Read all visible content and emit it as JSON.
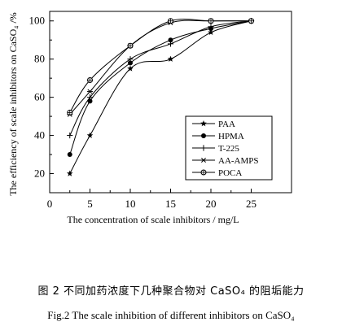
{
  "chart_data": {
    "type": "line",
    "xlabel": "The concentration of scale inhibitors / mg/L",
    "ylabel": "The efficiency of scale inhibitors on CaSO₄ /%",
    "xlim": [
      0,
      30
    ],
    "ylim": [
      10,
      105
    ],
    "xticks": [
      0,
      5,
      10,
      15,
      20,
      25
    ],
    "yticks": [
      20,
      40,
      60,
      80,
      100
    ],
    "grid": false,
    "legend_position": "center-right",
    "x": [
      2.5,
      5,
      10,
      15,
      20,
      25
    ],
    "series": [
      {
        "name": "PAA",
        "marker": "star",
        "values": [
          20,
          40,
          75,
          80,
          94,
          100
        ]
      },
      {
        "name": "HPMA",
        "marker": "filled-circle",
        "values": [
          30,
          58,
          78,
          90,
          96,
          100
        ]
      },
      {
        "name": "T-225",
        "marker": "plus",
        "values": [
          40,
          60,
          80,
          88,
          97,
          100
        ]
      },
      {
        "name": "AA-AMPS",
        "marker": "asterisk",
        "values": [
          51,
          63,
          87,
          99,
          100,
          100
        ]
      },
      {
        "name": "POCA",
        "marker": "circle-plus",
        "values": [
          52,
          69,
          87,
          100,
          100,
          100
        ]
      }
    ]
  },
  "captions": {
    "cn": "图 2  不同加药浓度下几种聚合物对 CaSO₄ 的阻垢能力",
    "en": "Fig.2  The scale inhibition of different inhibitors on CaSO₄"
  }
}
